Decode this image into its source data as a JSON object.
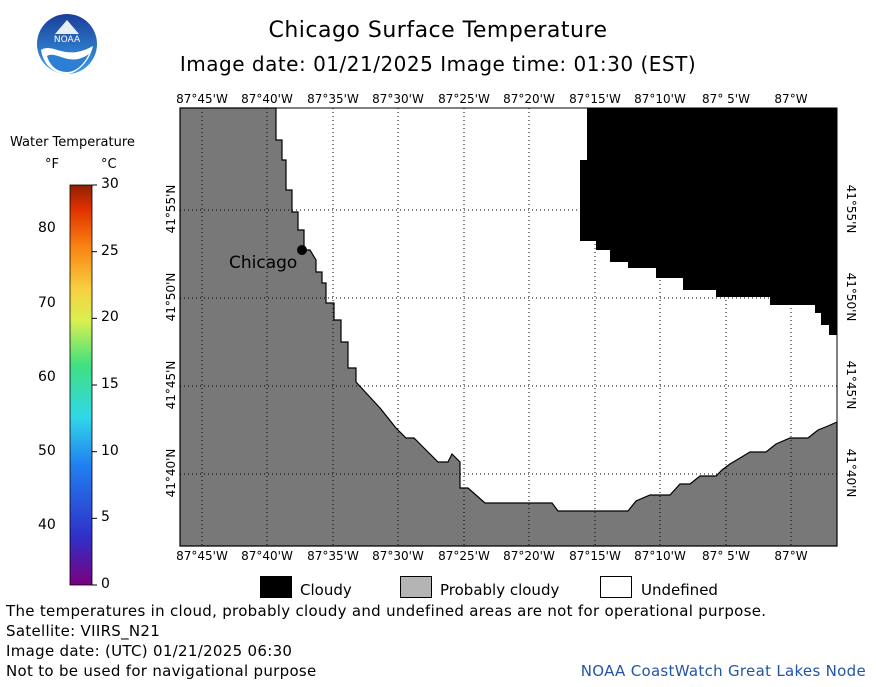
{
  "title": "Chicago Surface Temperature",
  "subtitle": "Image date: 01/21/2025    Image time: 01:30 (EST)",
  "top_longitudes": [
    "87°45'W",
    "87°40'W",
    "87°35'W",
    "87°30'W",
    "87°25'W",
    "87°20'W",
    "87°15'W",
    "87°10'W",
    "87° 5'W",
    "87°W"
  ],
  "bottom_longitudes": [
    "87°45'W",
    "87°40'W",
    "87°35'W",
    "87°30'W",
    "87°25'W",
    "87°20'W",
    "87°15'W",
    "87°10'W",
    "87° 5'W",
    "87°W"
  ],
  "left_latitudes": [
    "41°55'N",
    "41°50'N",
    "41°45'N",
    "41°40'N"
  ],
  "right_latitudes": [
    "41°55'N",
    "41°50'N",
    "41°45'N",
    "41°40'N"
  ],
  "city_label": "Chicago",
  "colorbar": {
    "title": "Water Temperature",
    "unit_f": "°F",
    "unit_c": "°C",
    "f_ticks": [
      "80",
      "70",
      "60",
      "50",
      "40"
    ],
    "c_ticks": [
      "30",
      "25",
      "20",
      "15",
      "10",
      "5",
      "0"
    ]
  },
  "legend": {
    "cloudy": "Cloudy",
    "probably_cloudy": "Probably cloudy",
    "undefined": "Undefined"
  },
  "footer": {
    "disclaimer": "The temperatures in cloud, probably cloudy and undefined areas are not for operational purpose.",
    "satellite": "Satellite: VIIRS_N21",
    "utc_date": "Image date: (UTC) 01/21/2025  06:30",
    "nav_warning": "Not to be used for navigational purpose",
    "credit": "NOAA CoastWatch Great Lakes Node"
  },
  "colors": {
    "land": "#787878",
    "cloudy": "#000000",
    "probably_cloudy": "#b4b4b4",
    "undefined": "#ffffff",
    "credit": "#2255aa"
  },
  "logo_text": "NOAA"
}
